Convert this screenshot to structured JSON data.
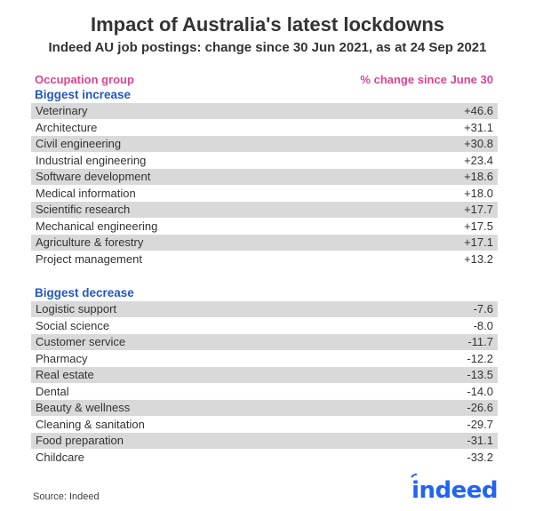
{
  "header": {
    "title": "Impact of Australia's latest lockdowns",
    "subtitle": "Indeed AU job postings: change since 30 Jun 2021, as at 24 Sep 2021"
  },
  "table": {
    "columns": [
      "Occupation group",
      "% change since June 30"
    ],
    "sections": [
      {
        "label": "Biggest increase",
        "rows": [
          {
            "label": "Veterinary",
            "value": "+46.6"
          },
          {
            "label": "Architecture",
            "value": "+31.1"
          },
          {
            "label": "Civil engineering",
            "value": "+30.8"
          },
          {
            "label": "Industrial engineering",
            "value": "+23.4"
          },
          {
            "label": "Software development",
            "value": "+18.6"
          },
          {
            "label": "Medical information",
            "value": "+18.0"
          },
          {
            "label": "Scientific research",
            "value": "+17.7"
          },
          {
            "label": "Mechanical engineering",
            "value": "+17.5"
          },
          {
            "label": "Agriculture & forestry",
            "value": "+17.1"
          },
          {
            "label": "Project management",
            "value": "+13.2"
          }
        ]
      },
      {
        "label": "Biggest decrease",
        "rows": [
          {
            "label": "Logistic support",
            "value": "-7.6"
          },
          {
            "label": "Social science",
            "value": "-8.0"
          },
          {
            "label": "Customer service",
            "value": "-11.7"
          },
          {
            "label": "Pharmacy",
            "value": "-12.2"
          },
          {
            "label": "Real estate",
            "value": "-13.5"
          },
          {
            "label": "Dental",
            "value": "-14.0"
          },
          {
            "label": "Beauty & wellness",
            "value": "-26.6"
          },
          {
            "label": "Cleaning & sanitation",
            "value": "-29.7"
          },
          {
            "label": "Food preparation",
            "value": "-31.1"
          },
          {
            "label": "Childcare",
            "value": "-33.2"
          }
        ]
      }
    ]
  },
  "footer": {
    "source": "Source: Indeed",
    "logo_text": "indeed"
  },
  "colors": {
    "accent_pink": "#D9468C",
    "accent_blue": "#2458C0",
    "logo_blue": "#2164F3",
    "row_stripe": "#D9D9D9",
    "text": "#333333"
  },
  "chart_data": {
    "type": "table",
    "title": "Impact of Australia's latest lockdowns",
    "subtitle": "Indeed AU job postings: change since 30 Jun 2021, as at 24 Sep 2021",
    "columns": [
      "Occupation group",
      "% change since June 30"
    ],
    "sections": [
      {
        "label": "Biggest increase",
        "categories": [
          "Veterinary",
          "Architecture",
          "Civil engineering",
          "Industrial engineering",
          "Software development",
          "Medical information",
          "Scientific research",
          "Mechanical engineering",
          "Agriculture & forestry",
          "Project management"
        ],
        "values": [
          46.6,
          31.1,
          30.8,
          23.4,
          18.6,
          18.0,
          17.7,
          17.5,
          17.1,
          13.2
        ]
      },
      {
        "label": "Biggest decrease",
        "categories": [
          "Logistic support",
          "Social science",
          "Customer service",
          "Pharmacy",
          "Real estate",
          "Dental",
          "Beauty & wellness",
          "Cleaning & sanitation",
          "Food preparation",
          "Childcare"
        ],
        "values": [
          -7.6,
          -8.0,
          -11.7,
          -12.2,
          -13.5,
          -14.0,
          -26.6,
          -29.7,
          -31.1,
          -33.2
        ]
      }
    ],
    "source": "Source: Indeed"
  }
}
